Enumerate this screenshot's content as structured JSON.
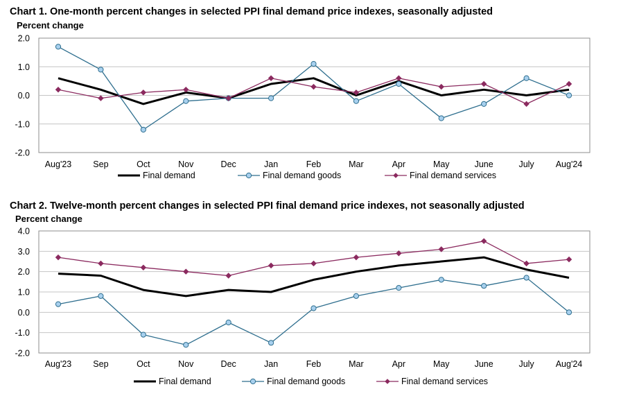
{
  "chart_data": [
    {
      "type": "line",
      "title": "Chart 1. One-month percent changes in selected PPI final demand price indexes, seasonally adjusted",
      "ylabel": "Percent change",
      "xlabel": "",
      "ylim": [
        -2.0,
        2.0
      ],
      "yticks": [
        "2.0",
        "1.0",
        "0.0",
        "-1.0",
        "-2.0"
      ],
      "ytick_values": [
        2.0,
        1.0,
        0.0,
        -1.0,
        -2.0
      ],
      "categories": [
        "Aug'23",
        "Sep",
        "Oct",
        "Nov",
        "Dec",
        "Jan",
        "Feb",
        "Mar",
        "Apr",
        "May",
        "June",
        "July",
        "Aug'24"
      ],
      "series": [
        {
          "name": "Final demand",
          "style": "thick",
          "color": "#000000",
          "values": [
            0.6,
            0.2,
            -0.3,
            0.1,
            -0.1,
            0.4,
            0.6,
            0.0,
            0.5,
            0.0,
            0.2,
            0.0,
            0.2
          ]
        },
        {
          "name": "Final demand goods",
          "style": "circle",
          "color": "#2e6e8e",
          "marker_fill": "#a8d0ee",
          "values": [
            1.7,
            0.9,
            -1.2,
            -0.2,
            -0.1,
            -0.1,
            1.1,
            -0.2,
            0.4,
            -0.8,
            -0.3,
            0.6,
            0.0
          ]
        },
        {
          "name": "Final demand services",
          "style": "diamond",
          "color": "#8b2a5f",
          "values": [
            0.2,
            -0.1,
            0.1,
            0.2,
            -0.1,
            0.6,
            0.3,
            0.1,
            0.6,
            0.3,
            0.4,
            -0.3,
            0.4
          ]
        }
      ],
      "grid": true,
      "legend": "bottom"
    },
    {
      "type": "line",
      "title": "Chart 2. Twelve-month percent changes in selected PPI final demand price indexes, not seasonally adjusted",
      "ylabel": "Percent change",
      "xlabel": "",
      "ylim": [
        -2.0,
        4.0
      ],
      "yticks": [
        "4.0",
        "3.0",
        "2.0",
        "1.0",
        "0.0",
        "-1.0",
        "-2.0"
      ],
      "ytick_values": [
        4.0,
        3.0,
        2.0,
        1.0,
        0.0,
        -1.0,
        -2.0
      ],
      "categories": [
        "Aug'23",
        "Sep",
        "Oct",
        "Nov",
        "Dec",
        "Jan",
        "Feb",
        "Mar",
        "Apr",
        "May",
        "June",
        "July",
        "Aug'24"
      ],
      "series": [
        {
          "name": "Final demand",
          "style": "thick",
          "color": "#000000",
          "values": [
            1.9,
            1.8,
            1.1,
            0.8,
            1.1,
            1.0,
            1.6,
            2.0,
            2.3,
            2.5,
            2.7,
            2.1,
            1.7
          ]
        },
        {
          "name": "Final demand goods",
          "style": "circle",
          "color": "#2e6e8e",
          "marker_fill": "#a8d0ee",
          "values": [
            0.4,
            0.8,
            -1.1,
            -1.6,
            -0.5,
            -1.5,
            0.2,
            0.8,
            1.2,
            1.6,
            1.3,
            1.7,
            0.0
          ]
        },
        {
          "name": "Final demand services",
          "style": "diamond",
          "color": "#8b2a5f",
          "values": [
            2.7,
            2.4,
            2.2,
            2.0,
            1.8,
            2.3,
            2.4,
            2.7,
            2.9,
            3.1,
            3.5,
            2.4,
            2.6
          ]
        }
      ],
      "grid": true,
      "legend": "bottom"
    }
  ]
}
